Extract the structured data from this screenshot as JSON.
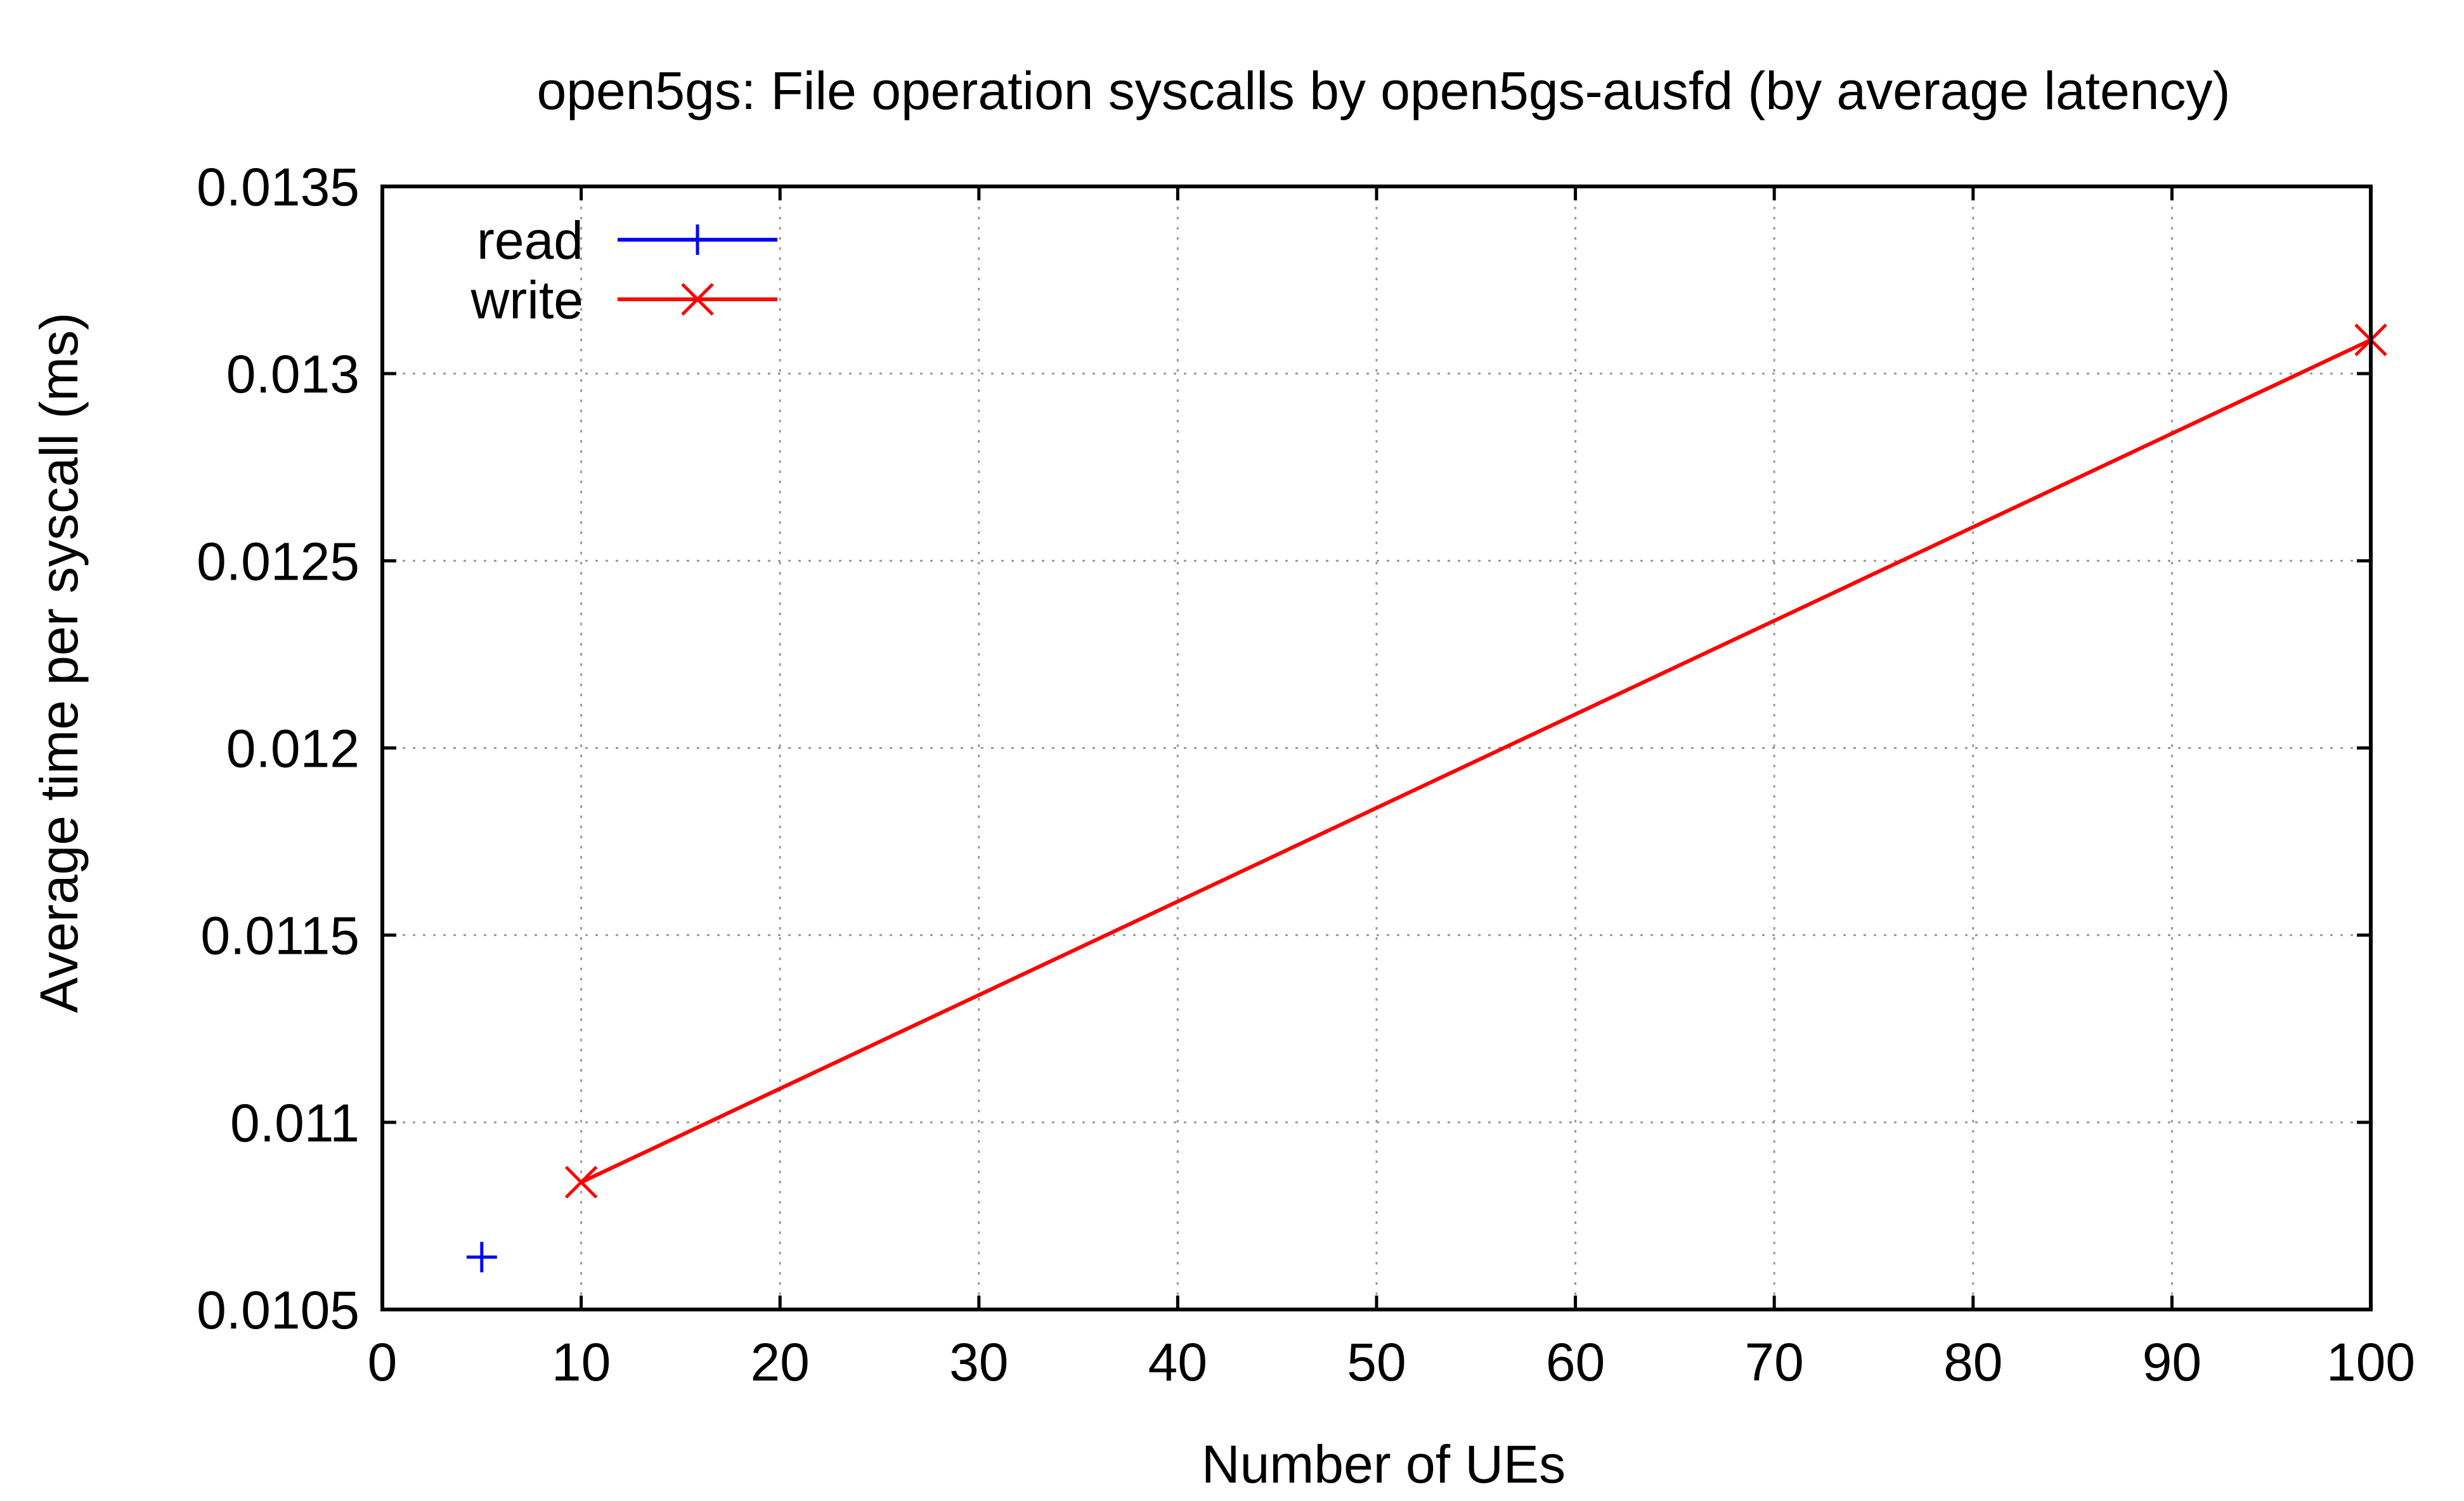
{
  "chart_data": {
    "type": "line",
    "title": "open5gs: File operation syscalls by open5gs-ausfd (by average latency)",
    "xlabel": "Number of UEs",
    "ylabel": "Average time per syscall (ms)",
    "xlim": [
      0,
      100
    ],
    "ylim": [
      0.0105,
      0.0135
    ],
    "xticks": [
      "0",
      "10",
      "20",
      "30",
      "40",
      "50",
      "60",
      "70",
      "80",
      "90",
      "100"
    ],
    "yticks": [
      "0.0105",
      "0.011",
      "0.0115",
      "0.012",
      "0.0125",
      "0.013",
      "0.0135"
    ],
    "grid": true,
    "legend_position": "top-left",
    "series": [
      {
        "name": "read",
        "color": "#0000ff",
        "marker": "plus",
        "points": [
          [
            5,
            0.01064
          ]
        ]
      },
      {
        "name": "write",
        "color": "#ff0000",
        "marker": "cross",
        "points": [
          [
            10,
            0.01084
          ],
          [
            100,
            0.01309
          ]
        ]
      }
    ]
  }
}
